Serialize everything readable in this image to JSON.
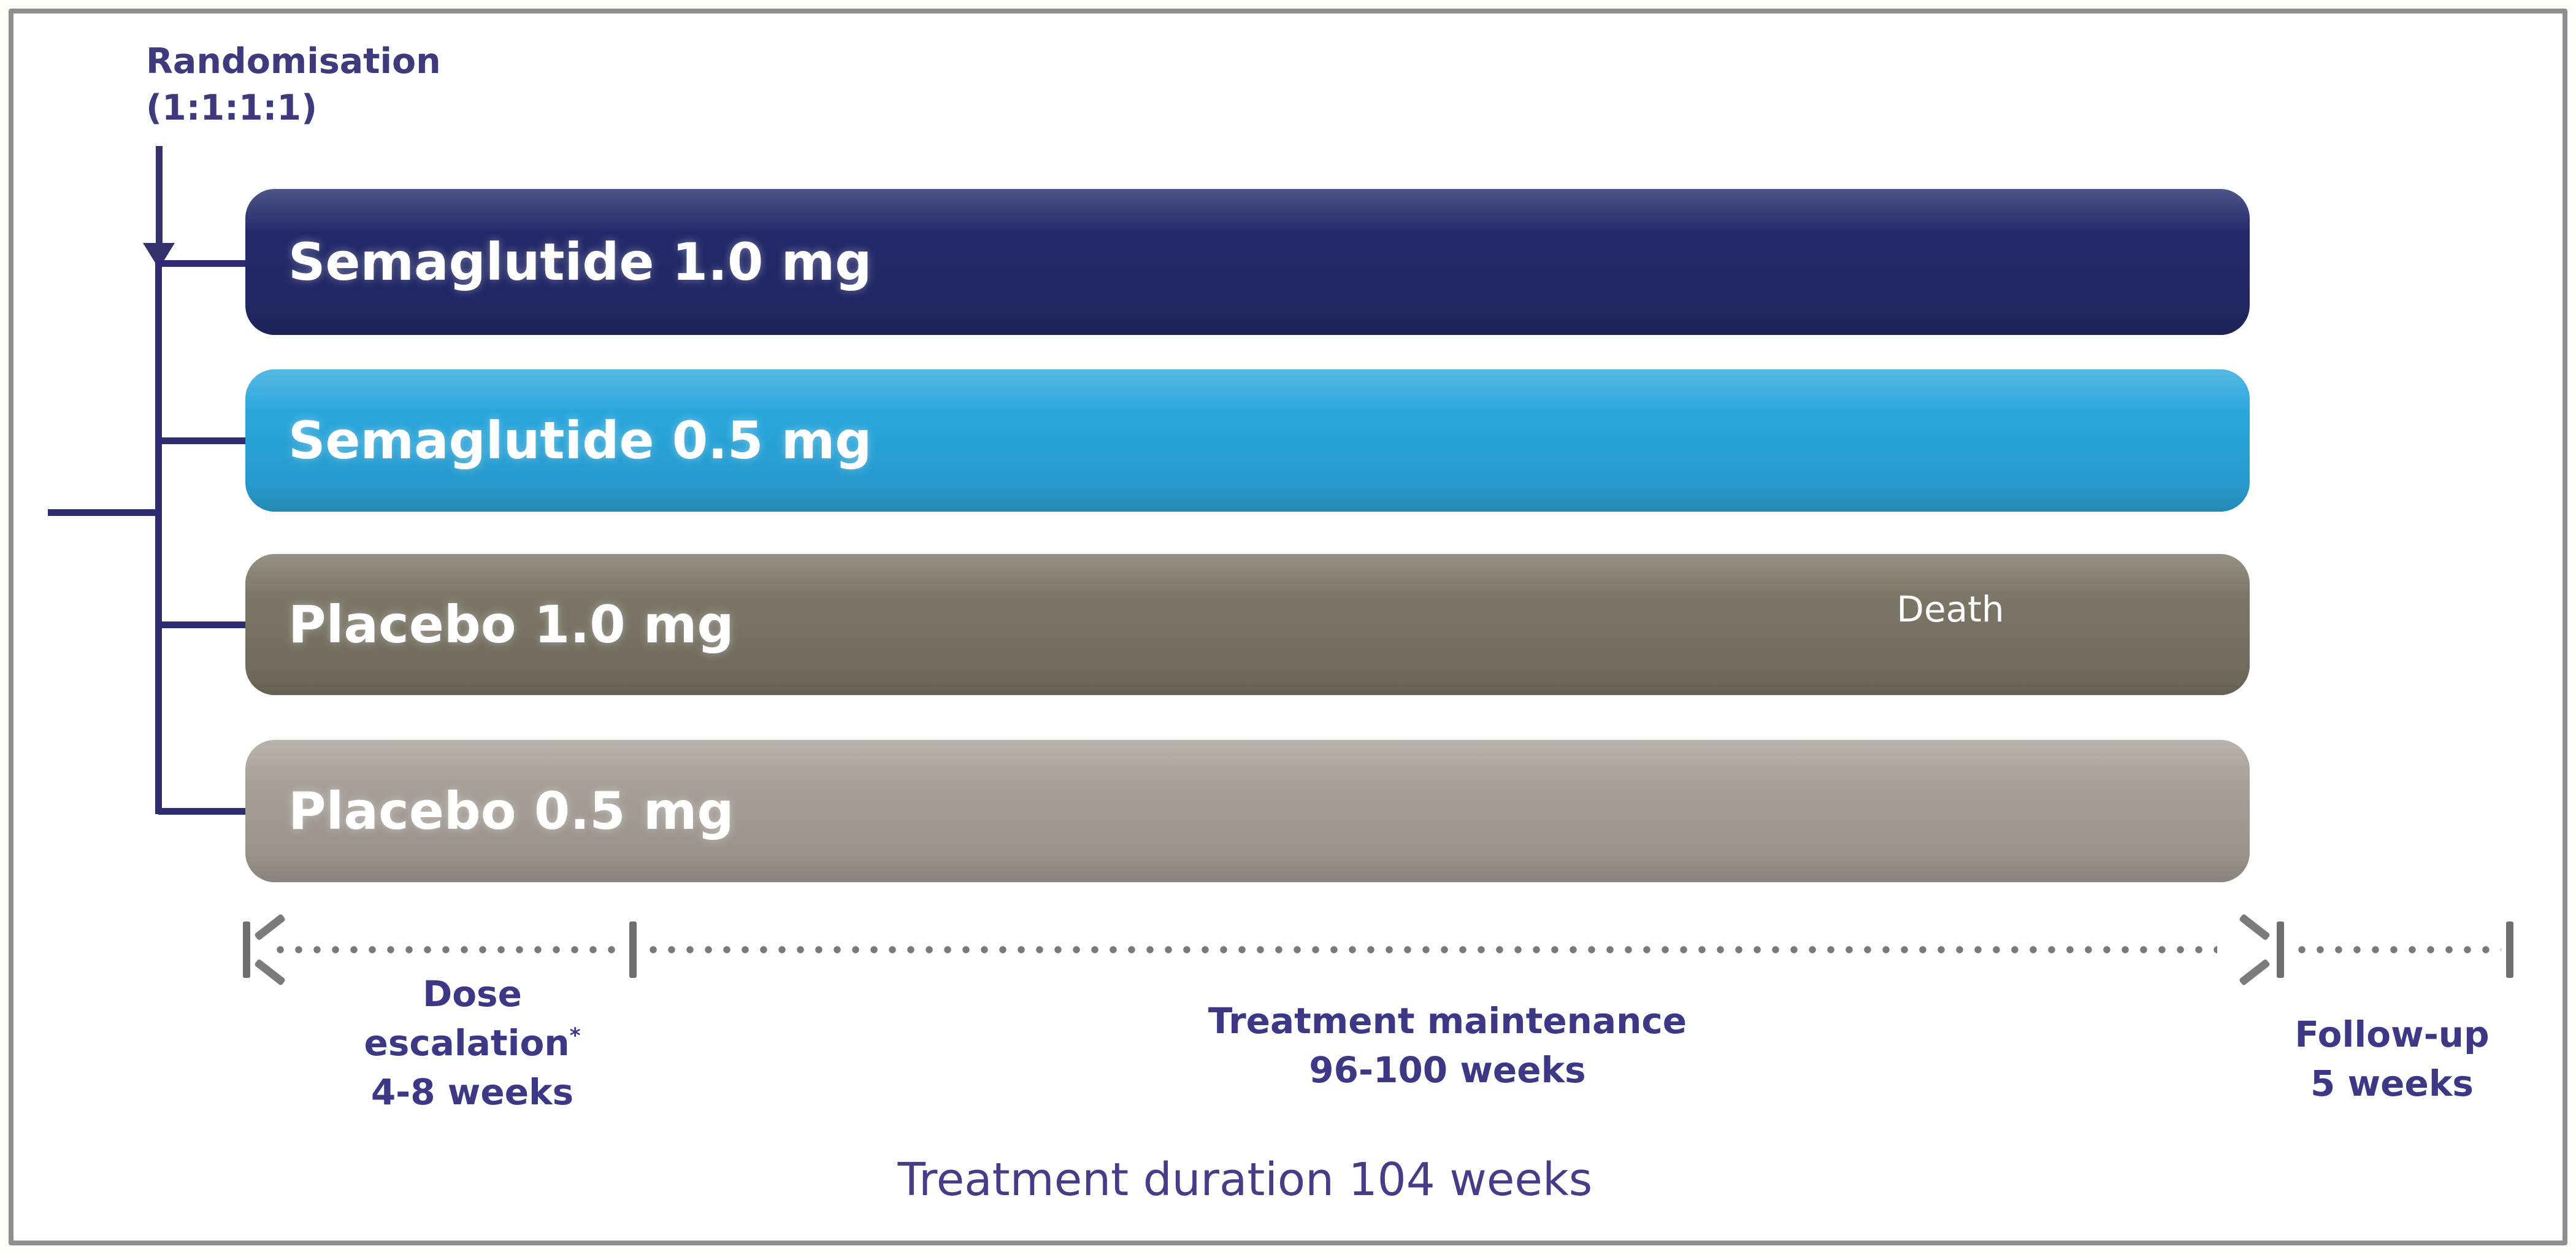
{
  "figure": {
    "title_semantic": "Trial design schematic",
    "randomisation": {
      "line1": "Randomisation",
      "line2": "(1:1:1:1)"
    },
    "arms": [
      {
        "label": "Semaglutide 1.0 mg",
        "color": "#232a6a"
      },
      {
        "label": "Semaglutide 0.5 mg",
        "color": "#2aa7dd"
      },
      {
        "label": "Placebo 1.0 mg",
        "color": "#7b7666",
        "annotation": "Death"
      },
      {
        "label": "Placebo 0.5 mg",
        "color": "#a7a098"
      }
    ],
    "timeline": {
      "dose_escalation": {
        "line1": "Dose",
        "line2": "escalation",
        "sup": "*",
        "line3": "4-8 weeks"
      },
      "maintenance": {
        "line1": "Treatment maintenance",
        "line2": "96-100 weeks"
      },
      "follow_up": {
        "line1": "Follow-up",
        "line2": "5 weeks"
      }
    },
    "duration_label": "Treatment duration 104 weeks",
    "colors": {
      "annotation_text": "#3c3886",
      "duration_text": "#463c87",
      "randomisation_text": "#3e3a7d",
      "tree_line": "#2e2c72",
      "timeline_grey": "#7a7a7a",
      "bar_text": "#ffffff",
      "frame_border": "#8e8e8e"
    }
  }
}
